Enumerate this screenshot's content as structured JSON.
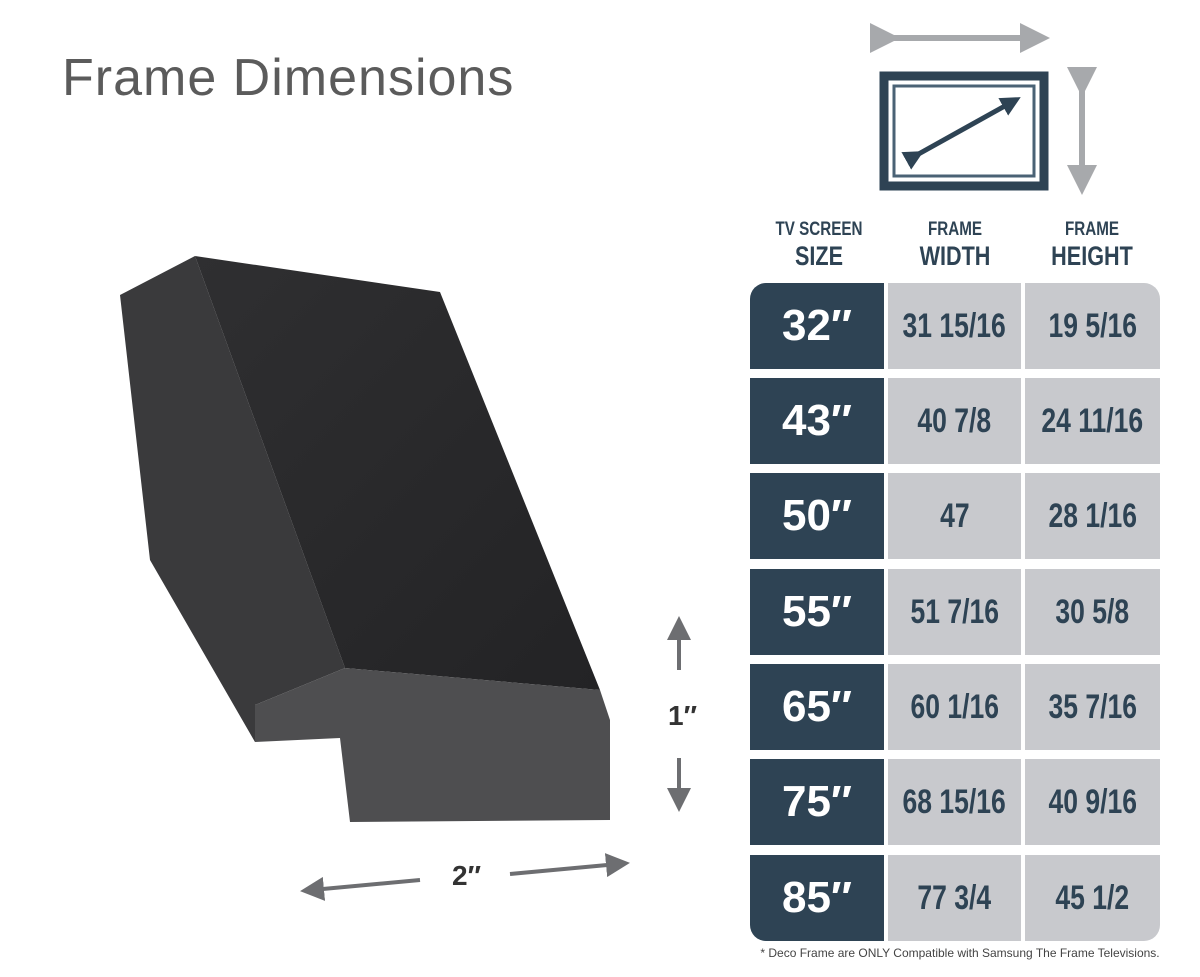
{
  "title": "Frame Dimensions",
  "illustration": {
    "height_label": "1″",
    "width_label": "2″"
  },
  "table": {
    "headers": [
      {
        "line1": "TV SCREEN",
        "line2": "SIZE"
      },
      {
        "line1": "FRAME",
        "line2": "WIDTH"
      },
      {
        "line1": "FRAME",
        "line2": "HEIGHT"
      }
    ],
    "rows": [
      {
        "size": "32″",
        "width": "31 15/16",
        "height": "19 5/16"
      },
      {
        "size": "43″",
        "width": "40 7/8",
        "height": "24 11/16"
      },
      {
        "size": "50″",
        "width": "47",
        "height": "28 1/16"
      },
      {
        "size": "55″",
        "width": "51 7/16",
        "height": "30 5/8"
      },
      {
        "size": "65″",
        "width": "60 1/16",
        "height": "35 7/16"
      },
      {
        "size": "75″",
        "width": "68 15/16",
        "height": "40 9/16"
      },
      {
        "size": "85″",
        "width": "77 3/4",
        "height": "45 1/2"
      }
    ],
    "footnote": "* Deco Frame are ONLY Compatible with Samsung The Frame Televisions."
  },
  "colors": {
    "navy": "#2e4354",
    "grey_cell": "#c8c9cd",
    "arrow_grey": "#a7a9ac"
  }
}
